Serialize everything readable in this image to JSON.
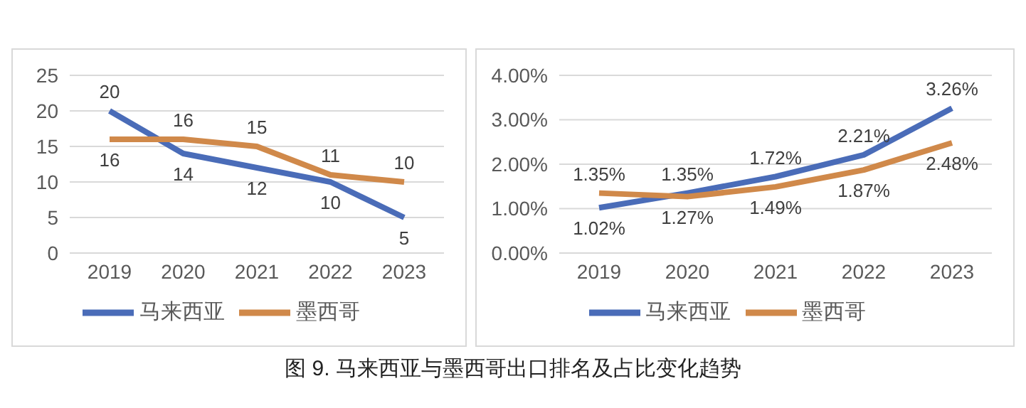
{
  "chart_data": [
    {
      "type": "line",
      "categories": [
        "2019",
        "2020",
        "2021",
        "2022",
        "2023"
      ],
      "series": [
        {
          "name": "马来西亚",
          "color": "#4a6cb8",
          "values": [
            20,
            14,
            12,
            10,
            5
          ]
        },
        {
          "name": "墨西哥",
          "color": "#d0894a",
          "values": [
            16,
            16,
            15,
            11,
            10
          ]
        }
      ],
      "ylim": [
        0,
        25
      ],
      "yticks": [
        0,
        5,
        10,
        15,
        20,
        25
      ],
      "grid": "y",
      "legend": "bottom",
      "data_labels": true,
      "marker": "none",
      "annotations": [
        "图 9. 马来西亚与墨西哥出口排名及占比变化趋势"
      ]
    },
    {
      "type": "line",
      "categories": [
        "2019",
        "2020",
        "2021",
        "2022",
        "2023"
      ],
      "series": [
        {
          "name": "马来西亚",
          "color": "#4a6cb8",
          "values": [
            1.02,
            1.35,
            1.72,
            2.21,
            3.26
          ],
          "value_labels": [
            "1.02%",
            "1.35%",
            "1.72%",
            "2.21%",
            "3.26%"
          ]
        },
        {
          "name": "墨西哥",
          "color": "#d0894a",
          "values": [
            1.35,
            1.27,
            1.49,
            1.87,
            2.48
          ],
          "value_labels": [
            "1.35%",
            "1.27%",
            "1.49%",
            "1.87%",
            "2.48%"
          ]
        }
      ],
      "ylim": [
        0,
        4
      ],
      "yticks": [
        {
          "value": 0,
          "label": "0.00%"
        },
        {
          "value": 1,
          "label": "1.00%"
        },
        {
          "value": 2,
          "label": "2.00%"
        },
        {
          "value": 3,
          "label": "3.00%"
        },
        {
          "value": 4,
          "label": "4.00%"
        }
      ],
      "grid": "y",
      "legend": "bottom",
      "marker": "none"
    }
  ]
}
